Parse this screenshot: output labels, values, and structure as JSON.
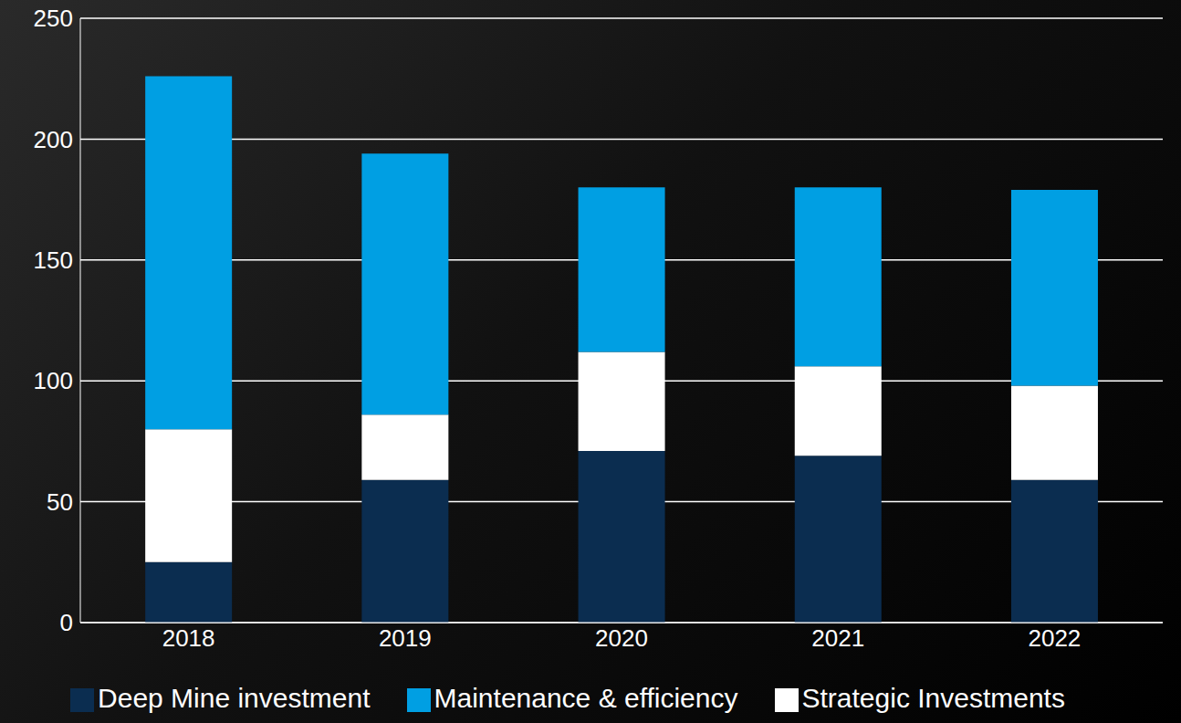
{
  "chart_data": {
    "type": "bar",
    "categories": [
      "2018",
      "2019",
      "2020",
      "2021",
      "2022"
    ],
    "series": [
      {
        "name": "Deep Mine investment",
        "color": "#0b2d50",
        "values": [
          25,
          59,
          71,
          69,
          59
        ]
      },
      {
        "name": "Strategic Investments",
        "color": "#ffffff",
        "values": [
          55,
          27,
          41,
          37,
          39
        ]
      },
      {
        "name": "Maintenance & efficiency",
        "color": "#009fe3",
        "values": [
          146,
          108,
          68,
          74,
          81
        ]
      }
    ],
    "ylim": [
      0,
      250
    ],
    "yticks": [
      0,
      50,
      100,
      150,
      200,
      250
    ],
    "stacked": true,
    "grid": true,
    "legend": "bottom"
  }
}
